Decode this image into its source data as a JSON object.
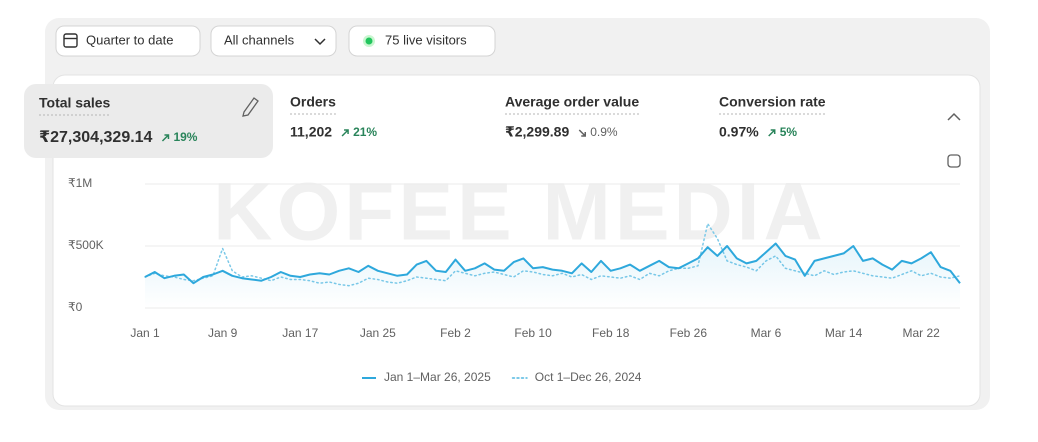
{
  "toolbar": {
    "date_range": "Quarter to date",
    "channel": "All channels",
    "live_visitors": "75 live visitors"
  },
  "watermark": "KOFEE MEDIA",
  "metrics": [
    {
      "label": "Total sales",
      "value": "₹27,304,329.14",
      "change": "19%",
      "direction": "up"
    },
    {
      "label": "Orders",
      "value": "11,202",
      "change": "21%",
      "direction": "up"
    },
    {
      "label": "Average order value",
      "value": "₹2,299.89",
      "change": "0.9%",
      "direction": "down"
    },
    {
      "label": "Conversion rate",
      "value": "0.97%",
      "change": "5%",
      "direction": "up"
    }
  ],
  "chart_data": {
    "type": "line",
    "categories": [
      "Jan 1",
      null,
      null,
      null,
      null,
      null,
      null,
      null,
      "Jan 9",
      null,
      null,
      null,
      null,
      null,
      null,
      null,
      "Jan 17",
      null,
      null,
      null,
      null,
      null,
      null,
      null,
      "Jan 25",
      null,
      null,
      null,
      null,
      null,
      null,
      null,
      "Feb 2",
      null,
      null,
      null,
      null,
      null,
      null,
      null,
      "Feb 10",
      null,
      null,
      null,
      null,
      null,
      null,
      null,
      "Feb 18",
      null,
      null,
      null,
      null,
      null,
      null,
      null,
      "Feb 26",
      null,
      null,
      null,
      null,
      null,
      null,
      null,
      "Mar 6",
      null,
      null,
      null,
      null,
      null,
      null,
      null,
      "Mar 14",
      null,
      null,
      null,
      null,
      null,
      null,
      null,
      "Mar 22",
      null,
      null,
      null,
      null
    ],
    "series": [
      {
        "name": "Jan 1–Mar 26, 2025",
        "color": "#2ea8dc",
        "style": "solid",
        "values": [
          250000,
          290000,
          240000,
          260000,
          270000,
          200000,
          250000,
          270000,
          300000,
          260000,
          240000,
          230000,
          220000,
          250000,
          290000,
          260000,
          250000,
          270000,
          280000,
          270000,
          300000,
          320000,
          290000,
          340000,
          300000,
          280000,
          260000,
          270000,
          350000,
          380000,
          300000,
          290000,
          390000,
          300000,
          320000,
          360000,
          310000,
          300000,
          370000,
          400000,
          320000,
          330000,
          310000,
          300000,
          280000,
          360000,
          290000,
          380000,
          300000,
          320000,
          350000,
          300000,
          340000,
          380000,
          330000,
          320000,
          360000,
          400000,
          490000,
          420000,
          500000,
          400000,
          360000,
          380000,
          450000,
          520000,
          420000,
          390000,
          260000,
          380000,
          400000,
          420000,
          440000,
          500000,
          380000,
          400000,
          350000,
          310000,
          380000,
          360000,
          400000,
          450000,
          330000,
          300000,
          200000
        ]
      },
      {
        "name": "Oct 1–Dec 26, 2024",
        "color": "#7cc9e8",
        "style": "dotted",
        "values": [
          250000,
          280000,
          260000,
          250000,
          230000,
          220000,
          240000,
          260000,
          480000,
          300000,
          250000,
          260000,
          240000,
          220000,
          250000,
          230000,
          230000,
          220000,
          200000,
          210000,
          190000,
          180000,
          200000,
          240000,
          230000,
          210000,
          200000,
          220000,
          250000,
          240000,
          230000,
          220000,
          300000,
          280000,
          260000,
          280000,
          290000,
          270000,
          250000,
          300000,
          290000,
          270000,
          260000,
          280000,
          250000,
          270000,
          230000,
          260000,
          250000,
          240000,
          260000,
          230000,
          280000,
          260000,
          300000,
          320000,
          320000,
          340000,
          680000,
          560000,
          380000,
          350000,
          330000,
          300000,
          380000,
          420000,
          320000,
          300000,
          280000,
          260000,
          300000,
          270000,
          290000,
          300000,
          280000,
          260000,
          250000,
          240000,
          270000,
          300000,
          260000,
          280000,
          250000,
          240000,
          260000
        ]
      }
    ],
    "ylim": [
      0,
      1000000
    ],
    "yticks": [
      {
        "value": 0,
        "label": "₹0"
      },
      {
        "value": 500000,
        "label": "₹500K"
      },
      {
        "value": 1000000,
        "label": "₹1M"
      }
    ],
    "grid": true
  }
}
